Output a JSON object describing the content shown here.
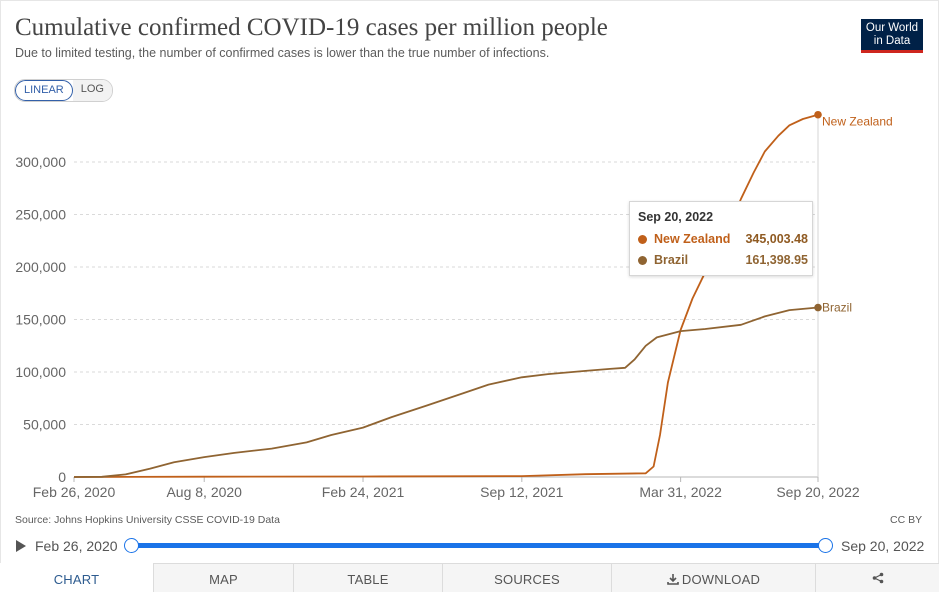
{
  "header": {
    "title": "Cumulative confirmed COVID-19 cases per million people",
    "subtitle": "Due to limited testing, the number of confirmed cases is lower than the true number of infections.",
    "logo_line1": "Our World",
    "logo_line2": "in Data"
  },
  "controls": {
    "linear_label": "LINEAR",
    "log_label": "LOG",
    "active_scale": "linear"
  },
  "colors": {
    "new_zealand": "#c0601a",
    "brazil": "#8f6432",
    "accent": "#1a73e8",
    "logo_bg": "#002147",
    "logo_bar": "#ce261e"
  },
  "chart_data": {
    "type": "line",
    "title": "Cumulative confirmed COVID-19 cases per million people",
    "subtitle": "Due to limited testing, the number of confirmed cases is lower than the true number of infections.",
    "x_tick_labels": [
      "Feb 26, 2020",
      "Aug 8, 2020",
      "Feb 24, 2021",
      "Sep 12, 2021",
      "Mar 31, 2022",
      "Sep 20, 2022"
    ],
    "y_tick_labels": [
      "0",
      "50,000",
      "100,000",
      "150,000",
      "200,000",
      "250,000",
      "300,000"
    ],
    "ylim": [
      0,
      340000
    ],
    "grid": "horizontal dashed",
    "legend": "inline labels at line ends",
    "series": [
      {
        "name": "New Zealand",
        "color": "#c0601a",
        "points": [
          [
            "2020-02-26",
            0
          ],
          [
            "2020-08-08",
            300
          ],
          [
            "2021-02-24",
            500
          ],
          [
            "2021-09-12",
            900
          ],
          [
            "2021-12-01",
            2700
          ],
          [
            "2022-02-15",
            3500
          ],
          [
            "2022-02-25",
            10000
          ],
          [
            "2022-03-05",
            40000
          ],
          [
            "2022-03-15",
            90000
          ],
          [
            "2022-03-31",
            140000
          ],
          [
            "2022-04-15",
            170000
          ],
          [
            "2022-05-01",
            195000
          ],
          [
            "2022-05-15",
            215000
          ],
          [
            "2022-06-01",
            240000
          ],
          [
            "2022-06-15",
            265000
          ],
          [
            "2022-07-01",
            290000
          ],
          [
            "2022-07-15",
            310000
          ],
          [
            "2022-08-01",
            325000
          ],
          [
            "2022-08-15",
            335000
          ],
          [
            "2022-09-01",
            341000
          ],
          [
            "2022-09-20",
            345003.48
          ]
        ],
        "end_label": "New Zealand"
      },
      {
        "name": "Brazil",
        "color": "#8f6432",
        "points": [
          [
            "2020-02-26",
            0
          ],
          [
            "2020-04-01",
            200
          ],
          [
            "2020-05-01",
            2500
          ],
          [
            "2020-06-01",
            8000
          ],
          [
            "2020-07-01",
            14000
          ],
          [
            "2020-08-08",
            19000
          ],
          [
            "2020-09-15",
            23000
          ],
          [
            "2020-11-01",
            27000
          ],
          [
            "2020-12-15",
            33000
          ],
          [
            "2021-01-15",
            40000
          ],
          [
            "2021-02-24",
            47000
          ],
          [
            "2021-04-01",
            57000
          ],
          [
            "2021-05-15",
            68000
          ],
          [
            "2021-07-01",
            80000
          ],
          [
            "2021-08-01",
            88000
          ],
          [
            "2021-09-12",
            95000
          ],
          [
            "2021-10-15",
            98000
          ],
          [
            "2021-12-01",
            101000
          ],
          [
            "2022-01-01",
            103000
          ],
          [
            "2022-01-20",
            104000
          ],
          [
            "2022-02-01",
            112000
          ],
          [
            "2022-02-15",
            125000
          ],
          [
            "2022-03-01",
            133000
          ],
          [
            "2022-03-31",
            139000
          ],
          [
            "2022-05-01",
            141000
          ],
          [
            "2022-06-15",
            145000
          ],
          [
            "2022-07-15",
            153000
          ],
          [
            "2022-08-15",
            159000
          ],
          [
            "2022-09-20",
            161398.95
          ]
        ],
        "end_label": "Brazil"
      }
    ]
  },
  "tooltip": {
    "date": "Sep 20, 2022",
    "rows": [
      {
        "name": "New Zealand",
        "value": "345,003.48"
      },
      {
        "name": "Brazil",
        "value": "161,398.95"
      }
    ]
  },
  "footer": {
    "source": "Source: Johns Hopkins University CSSE COVID-19 Data",
    "license": "CC BY"
  },
  "timeline": {
    "start": "Feb 26, 2020",
    "end": "Sep 20, 2022"
  },
  "tabs": [
    {
      "label": "CHART",
      "icon": "",
      "active": true
    },
    {
      "label": "MAP",
      "icon": "",
      "active": false
    },
    {
      "label": "TABLE",
      "icon": "",
      "active": false
    },
    {
      "label": "SOURCES",
      "icon": "",
      "active": false
    },
    {
      "label": "DOWNLOAD",
      "icon": "download-icon",
      "active": false
    },
    {
      "label": "",
      "icon": "share-icon",
      "active": false
    }
  ]
}
